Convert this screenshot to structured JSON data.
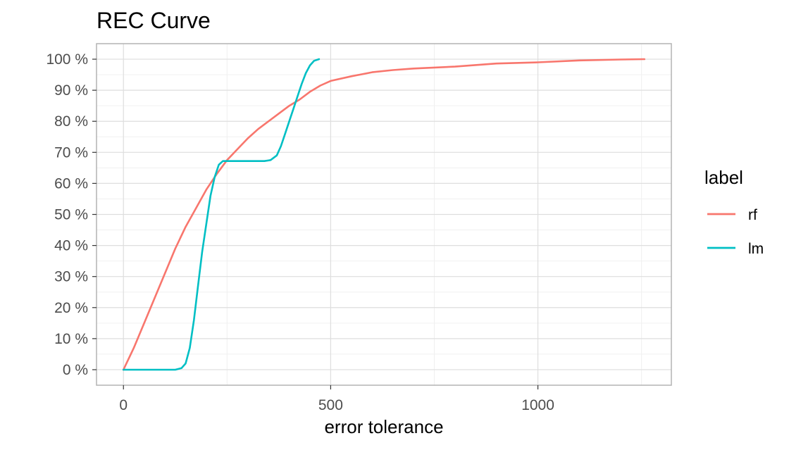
{
  "chart_data": {
    "type": "line",
    "title": "REC Curve",
    "xlabel": "error tolerance",
    "ylabel": "",
    "xlim": [
      -65,
      1322
    ],
    "ylim": [
      -0.05,
      1.05
    ],
    "x_ticks": [
      0,
      500,
      1000
    ],
    "x_tick_labels": [
      "0",
      "500",
      "1000"
    ],
    "y_ticks": [
      0,
      0.1,
      0.2,
      0.3,
      0.4,
      0.5,
      0.6,
      0.7,
      0.8,
      0.9,
      1.0
    ],
    "y_tick_labels": [
      "0 %",
      "10 %",
      "20 %",
      "30 %",
      "40 %",
      "50 %",
      "60 %",
      "70 %",
      "80 %",
      "90 %",
      "100 %"
    ],
    "grid": true,
    "legend": {
      "title": "label",
      "position": "right"
    },
    "series": [
      {
        "name": "rf",
        "color": "#F8766D",
        "points": [
          [
            0,
            0.0
          ],
          [
            25,
            0.07
          ],
          [
            50,
            0.15
          ],
          [
            75,
            0.23
          ],
          [
            100,
            0.31
          ],
          [
            125,
            0.39
          ],
          [
            150,
            0.46
          ],
          [
            175,
            0.52
          ],
          [
            200,
            0.58
          ],
          [
            225,
            0.63
          ],
          [
            250,
            0.675
          ],
          [
            275,
            0.71
          ],
          [
            300,
            0.745
          ],
          [
            325,
            0.775
          ],
          [
            350,
            0.8
          ],
          [
            375,
            0.825
          ],
          [
            400,
            0.85
          ],
          [
            425,
            0.87
          ],
          [
            450,
            0.895
          ],
          [
            475,
            0.915
          ],
          [
            500,
            0.93
          ],
          [
            550,
            0.945
          ],
          [
            600,
            0.958
          ],
          [
            650,
            0.965
          ],
          [
            700,
            0.97
          ],
          [
            800,
            0.976
          ],
          [
            900,
            0.986
          ],
          [
            1000,
            0.99
          ],
          [
            1100,
            0.996
          ],
          [
            1200,
            0.999
          ],
          [
            1257,
            1.0
          ]
        ]
      },
      {
        "name": "lm",
        "color": "#00BFC4",
        "points": [
          [
            0,
            0.0
          ],
          [
            125,
            0.0
          ],
          [
            140,
            0.005
          ],
          [
            150,
            0.02
          ],
          [
            160,
            0.07
          ],
          [
            170,
            0.16
          ],
          [
            180,
            0.27
          ],
          [
            190,
            0.38
          ],
          [
            200,
            0.47
          ],
          [
            210,
            0.56
          ],
          [
            220,
            0.62
          ],
          [
            230,
            0.66
          ],
          [
            240,
            0.672
          ],
          [
            260,
            0.672
          ],
          [
            300,
            0.672
          ],
          [
            340,
            0.672
          ],
          [
            355,
            0.675
          ],
          [
            370,
            0.69
          ],
          [
            380,
            0.72
          ],
          [
            390,
            0.76
          ],
          [
            400,
            0.8
          ],
          [
            410,
            0.84
          ],
          [
            420,
            0.88
          ],
          [
            430,
            0.92
          ],
          [
            440,
            0.955
          ],
          [
            450,
            0.98
          ],
          [
            460,
            0.995
          ],
          [
            472,
            1.0
          ]
        ]
      }
    ]
  }
}
